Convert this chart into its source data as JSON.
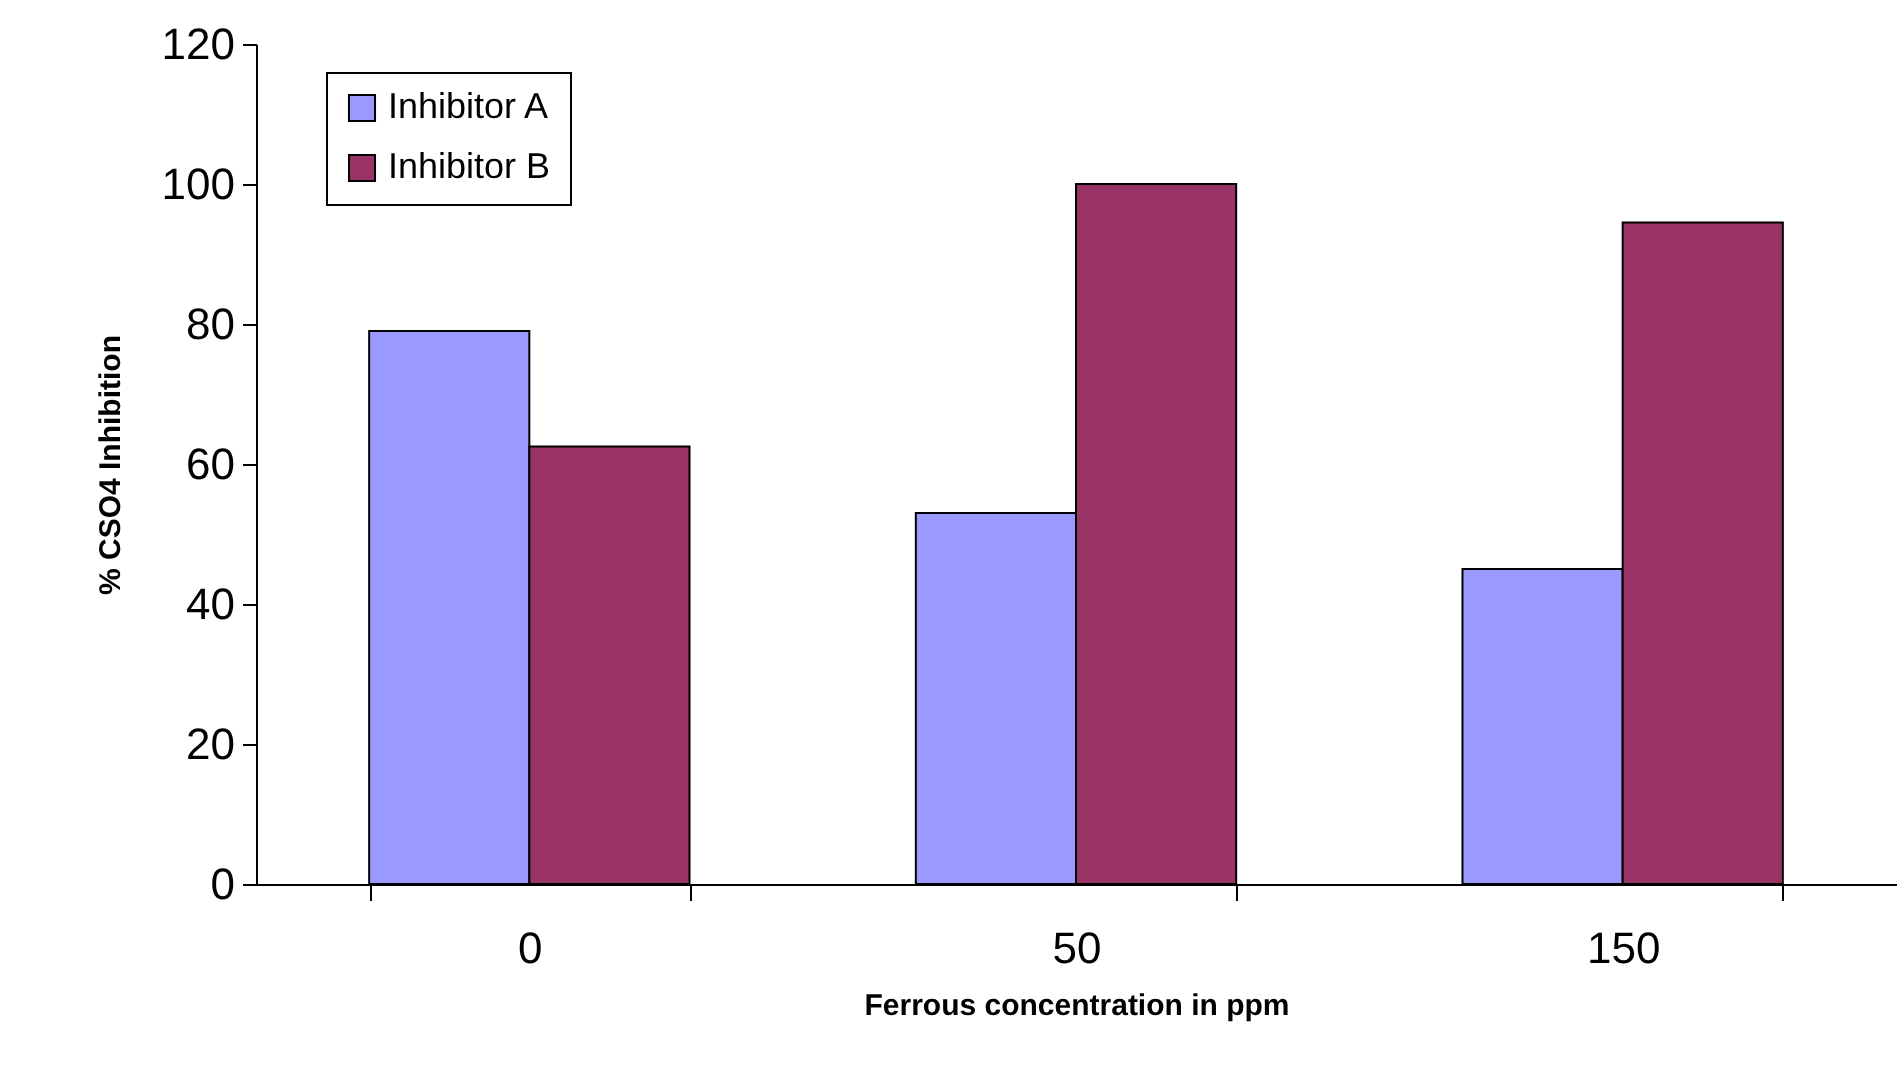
{
  "chart_data": {
    "type": "bar",
    "xlabel": "Ferrous  concentration in ppm",
    "ylabel": "% CSO4 Inhibition",
    "categories": [
      "0",
      "50",
      "150"
    ],
    "series": [
      {
        "name": "Inhibitor A",
        "color": "#9999ff",
        "values": [
          79,
          53,
          45
        ]
      },
      {
        "name": "Inhibitor B",
        "color": "#993366",
        "values": [
          62.5,
          100,
          94.5
        ]
      }
    ],
    "ylim": [
      0,
      120
    ],
    "yticks": [
      0,
      20,
      40,
      60,
      80,
      100,
      120
    ],
    "legend": "top left"
  }
}
